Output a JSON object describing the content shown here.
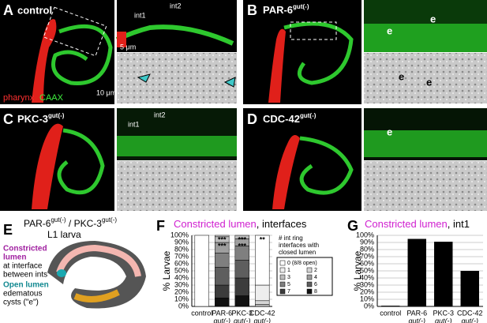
{
  "panels": {
    "a": {
      "letter": "A",
      "label": "control",
      "int1": "int1",
      "int2": "int2",
      "scale_small": "5 μm",
      "scale_large": "10 μm",
      "legend_red": "pharynx",
      "legend_green": "CAAX"
    },
    "b": {
      "letter": "B",
      "label": "PAR-6",
      "label_sup": "gut(-)",
      "cyst": "e"
    },
    "c": {
      "letter": "C",
      "label": "PKC-3",
      "label_sup": "gut(-)",
      "int1": "int1",
      "int2": "int2"
    },
    "d": {
      "letter": "D",
      "label": "CDC-42",
      "label_sup": "gut(-)",
      "cyst": "e"
    },
    "e": {
      "letter": "E",
      "title_a": "PAR-6",
      "title_a_sup": "gut(-)",
      "title_sep": " / PKC-3",
      "title_b_sup": "gut(-)",
      "subtitle": "L1 larva",
      "constricted": [
        "Constricted",
        "lumen"
      ],
      "constricted_desc": [
        "at interface",
        "between ints"
      ],
      "open": "Open lumen",
      "open_desc": [
        "edematous",
        "cysts (\"e\")"
      ]
    }
  },
  "chart_data": [
    {
      "type": "stacked-bar",
      "letter": "F",
      "title_highlight": "Constricted lumen",
      "title_rest": ", interfaces",
      "ylabel": "% Larvae",
      "categories": [
        [
          "control"
        ],
        [
          "PAR-6",
          "gut(-)"
        ],
        [
          "PKC-3",
          "gut(-)"
        ],
        [
          "CDC-42",
          "gut(-)"
        ]
      ],
      "legend_title": [
        "# int ring",
        "interfaces with",
        "closed lumen"
      ],
      "series": [
        {
          "name": "0 (8/8 open)",
          "color": "#ffffff",
          "values": [
            100,
            0,
            0,
            70
          ]
        },
        {
          "name": "1",
          "color": "#eeeeee",
          "values": [
            0,
            0,
            0,
            22
          ]
        },
        {
          "name": "2",
          "color": "#d6d6d6",
          "values": [
            0,
            2,
            0,
            5
          ]
        },
        {
          "name": "3",
          "color": "#bdbdbd",
          "values": [
            0,
            8,
            5,
            3
          ]
        },
        {
          "name": "4",
          "color": "#9e9e9e",
          "values": [
            0,
            15,
            10,
            0
          ]
        },
        {
          "name": "5",
          "color": "#7f7f7f",
          "values": [
            0,
            20,
            20,
            0
          ]
        },
        {
          "name": "6",
          "color": "#5e5e5e",
          "values": [
            0,
            25,
            25,
            0
          ]
        },
        {
          "name": "7",
          "color": "#3c3c3c",
          "values": [
            0,
            18,
            25,
            0
          ]
        },
        {
          "name": "8",
          "color": "#111111",
          "values": [
            0,
            12,
            15,
            0
          ]
        }
      ],
      "annotations": [
        "",
        "***",
        "***",
        "**"
      ],
      "annotations_yellow": [
        "",
        "***",
        "***",
        ""
      ],
      "ylim": [
        0,
        100
      ],
      "yticks": [
        {
          "value": 0,
          "label": "0%"
        },
        {
          "value": 10,
          "label": "10%"
        },
        {
          "value": 20,
          "label": "20%"
        },
        {
          "value": 30,
          "label": "30%"
        },
        {
          "value": 40,
          "label": "40%"
        },
        {
          "value": 50,
          "label": "50%"
        },
        {
          "value": 60,
          "label": "60%"
        },
        {
          "value": 70,
          "label": "70%"
        },
        {
          "value": 80,
          "label": "80%"
        },
        {
          "value": 90,
          "label": "90%"
        },
        {
          "value": 100,
          "label": "100%"
        }
      ],
      "grid": true
    },
    {
      "type": "bar",
      "letter": "G",
      "title_highlight": "Constricted lumen",
      "title_rest": ", int1",
      "ylabel": "% Larvae",
      "categories": [
        [
          "control"
        ],
        [
          "PAR-6",
          "gut(-)"
        ],
        [
          "PKC-3",
          "gut(-)"
        ],
        [
          "CDC-42",
          "gut(-)"
        ]
      ],
      "values": [
        1,
        95,
        91,
        50
      ],
      "color": "#000000",
      "ylim": [
        0,
        100
      ],
      "yticks": [
        {
          "value": 0,
          "label": "0%"
        },
        {
          "value": 10,
          "label": "10%"
        },
        {
          "value": 20,
          "label": "20%"
        },
        {
          "value": 30,
          "label": "30%"
        },
        {
          "value": 40,
          "label": "40%"
        },
        {
          "value": 50,
          "label": "50%"
        },
        {
          "value": 60,
          "label": "60%"
        },
        {
          "value": 70,
          "label": "70%"
        },
        {
          "value": 80,
          "label": "80%"
        },
        {
          "value": 90,
          "label": "90%"
        },
        {
          "value": 100,
          "label": "100%"
        }
      ],
      "grid": true
    }
  ]
}
